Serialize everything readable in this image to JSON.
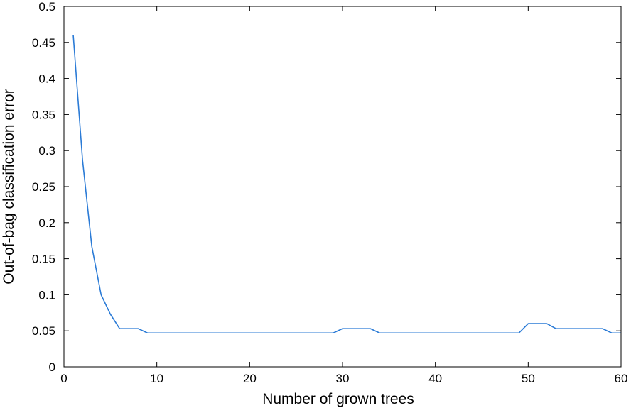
{
  "chart_data": {
    "type": "line",
    "title": "",
    "xlabel": "Number of grown trees",
    "ylabel": "Out-of-bag classification error",
    "xlim": [
      0,
      60
    ],
    "ylim": [
      0,
      0.5
    ],
    "xticks": [
      0,
      10,
      20,
      30,
      40,
      50,
      60
    ],
    "xtick_labels": [
      "0",
      "10",
      "20",
      "30",
      "40",
      "50",
      "60"
    ],
    "yticks": [
      0,
      0.05,
      0.1,
      0.15,
      0.2,
      0.25,
      0.3,
      0.35,
      0.4,
      0.45,
      0.5
    ],
    "ytick_labels": [
      "0",
      "0.05",
      "0.1",
      "0.15",
      "0.2",
      "0.25",
      "0.3",
      "0.35",
      "0.4",
      "0.45",
      "0.5"
    ],
    "grid": false,
    "legend": "none",
    "line_color": "#2b7bd6",
    "series": [
      {
        "x": [
          1,
          2,
          3,
          4,
          5,
          6,
          7,
          8,
          9,
          10,
          11,
          12,
          13,
          14,
          15,
          16,
          17,
          18,
          19,
          20,
          21,
          22,
          23,
          24,
          25,
          26,
          27,
          28,
          29,
          30,
          31,
          32,
          33,
          34,
          35,
          36,
          37,
          38,
          39,
          40,
          41,
          42,
          43,
          44,
          45,
          46,
          47,
          48,
          49,
          50,
          51,
          52,
          53,
          54,
          55,
          56,
          57,
          58,
          59,
          60
        ],
        "values": [
          0.46,
          0.287,
          0.167,
          0.1,
          0.073,
          0.053,
          0.053,
          0.053,
          0.047,
          0.047,
          0.047,
          0.047,
          0.047,
          0.047,
          0.047,
          0.047,
          0.047,
          0.047,
          0.047,
          0.047,
          0.047,
          0.047,
          0.047,
          0.047,
          0.047,
          0.047,
          0.047,
          0.047,
          0.047,
          0.053,
          0.053,
          0.053,
          0.053,
          0.047,
          0.047,
          0.047,
          0.047,
          0.047,
          0.047,
          0.047,
          0.047,
          0.047,
          0.047,
          0.047,
          0.047,
          0.047,
          0.047,
          0.047,
          0.047,
          0.06,
          0.06,
          0.06,
          0.053,
          0.053,
          0.053,
          0.053,
          0.053,
          0.053,
          0.047,
          0.047
        ]
      }
    ]
  }
}
